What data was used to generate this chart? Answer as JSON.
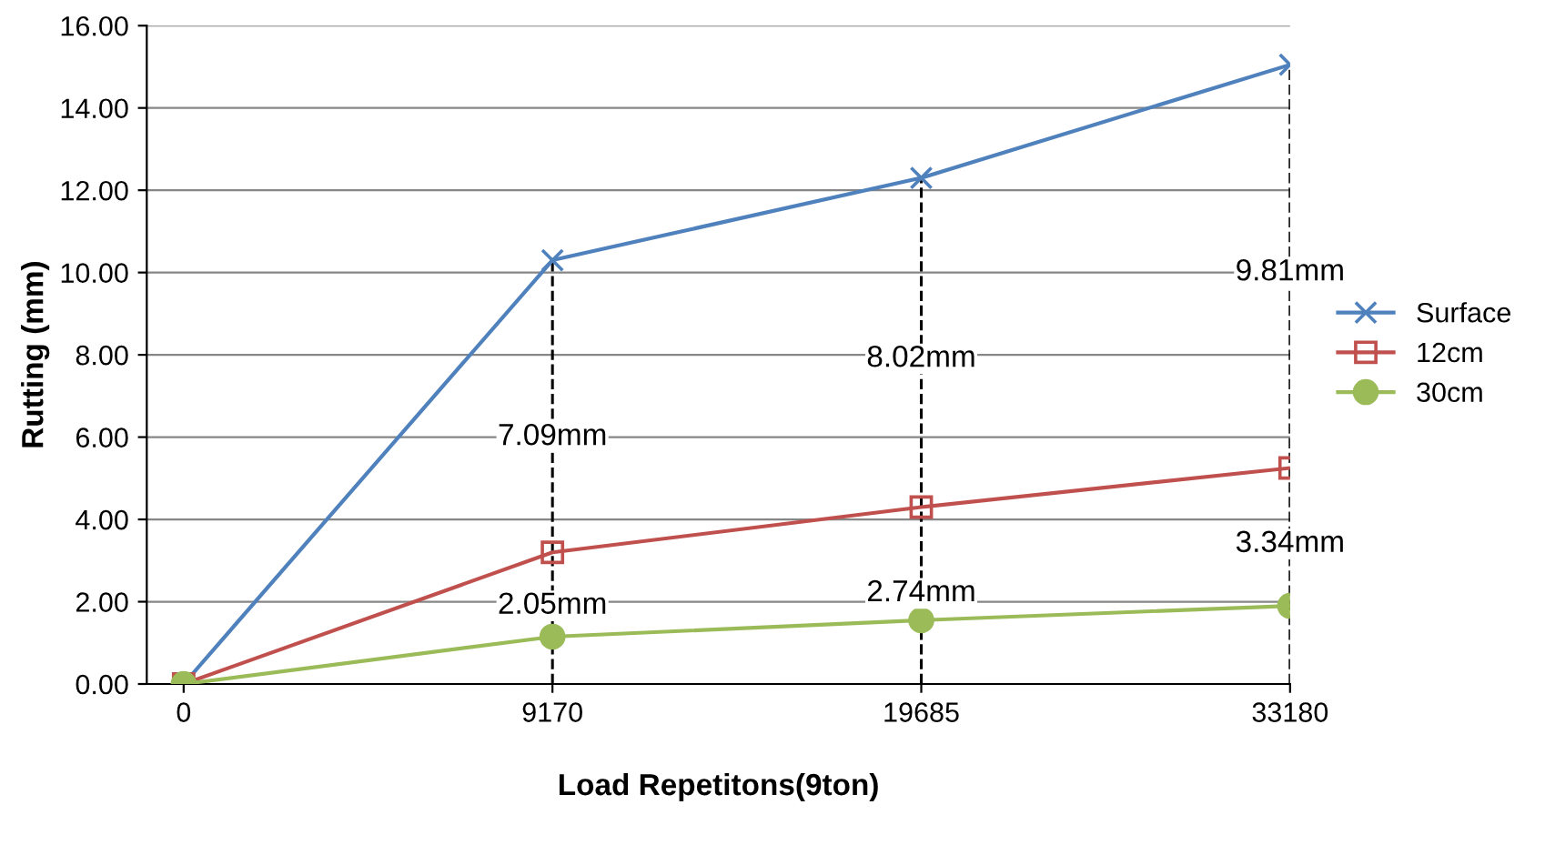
{
  "chart_data": {
    "type": "line",
    "xlabel": "Load Repetitons(9ton)",
    "ylabel": "Rutting (mm)",
    "categories": [
      "0",
      "9170",
      "19685",
      "33180"
    ],
    "series": [
      {
        "name": "Surface",
        "color": "#4f81bd",
        "marker": "cross",
        "values": [
          0,
          10.3,
          12.3,
          15.05
        ]
      },
      {
        "name": "12cm",
        "color": "#c0504d",
        "marker": "square",
        "values": [
          0,
          3.2,
          4.3,
          5.25
        ]
      },
      {
        "name": "30cm",
        "color": "#9bbb59",
        "marker": "circle",
        "values": [
          0,
          1.15,
          1.55,
          1.9
        ]
      }
    ],
    "ylim": [
      0,
      16
    ],
    "yticks": [
      {
        "value": 0,
        "label": "0.00"
      },
      {
        "value": 2,
        "label": "2.00"
      },
      {
        "value": 4,
        "label": "4.00"
      },
      {
        "value": 6,
        "label": "6.00"
      },
      {
        "value": 8,
        "label": "8.00"
      },
      {
        "value": 10,
        "label": "10.00"
      },
      {
        "value": 12,
        "label": "12.00"
      },
      {
        "value": 14,
        "label": "14.00"
      },
      {
        "value": 16,
        "label": "16.00"
      }
    ],
    "grid": "y",
    "legend": "right",
    "ref_lines": [
      {
        "axis": "x",
        "value": "9170",
        "line_style": "dashed",
        "color": "#000000"
      },
      {
        "axis": "x",
        "value": "19685",
        "line_style": "dashed",
        "color": "#000000"
      },
      {
        "axis": "x",
        "value": "33180",
        "line_style": "dashed",
        "color": "#000000"
      }
    ],
    "annotations": [
      {
        "text": "7.09mm",
        "x": "9170",
        "y": 6.0
      },
      {
        "text": "8.02mm",
        "x": "19685",
        "y": 7.9
      },
      {
        "text": "9.81mm",
        "x": "33180",
        "y": 10.0
      },
      {
        "text": "2.05mm",
        "x": "9170",
        "y": 1.9
      },
      {
        "text": "2.74mm",
        "x": "19685",
        "y": 2.2
      },
      {
        "text": "3.34mm",
        "x": "33180",
        "y": 3.4
      }
    ]
  }
}
